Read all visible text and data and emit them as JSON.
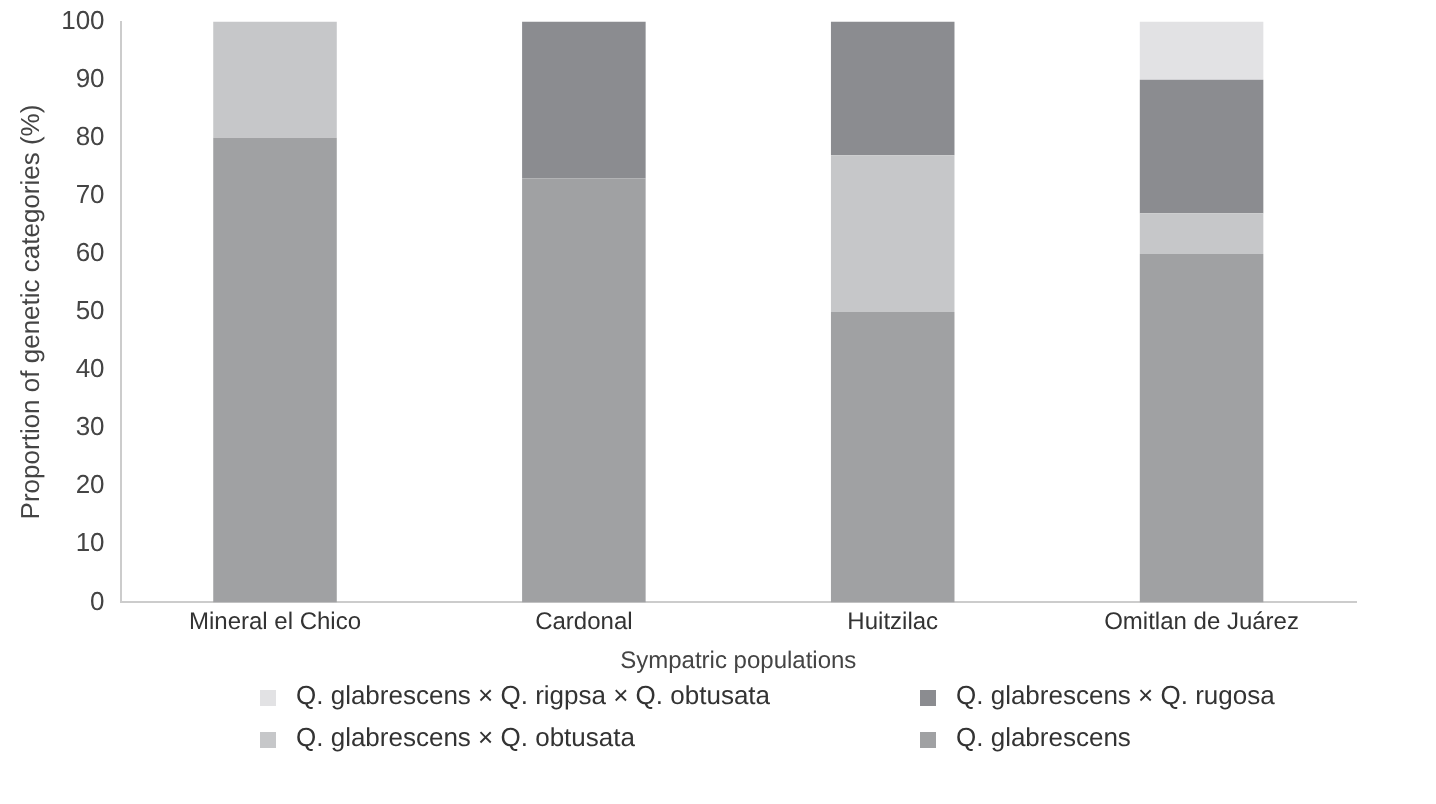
{
  "chart_data": {
    "type": "bar",
    "stacked": true,
    "xlabel": "Sympatric populations",
    "ylabel": "Proportion of genetic categories (%)",
    "categories": [
      "Mineral el Chico",
      "Cardonal",
      "Huitzilac",
      "Omitlan de Juárez"
    ],
    "series": [
      {
        "name": "Q. glabrescens",
        "color": "#a0a1a3",
        "values": [
          80,
          73,
          50,
          60
        ]
      },
      {
        "name": "Q. glabrescens × Q. obtusata",
        "color": "#c6c7c9",
        "values": [
          20,
          0,
          27,
          7
        ]
      },
      {
        "name": "Q. glabrescens × Q. rugosa",
        "color": "#8b8c90",
        "values": [
          0,
          27,
          23,
          23
        ]
      },
      {
        "name": "Q. glabrescens × Q. rigpsa × Q. obtusata",
        "color": "#e2e2e4",
        "values": [
          0,
          0,
          0,
          10
        ]
      }
    ],
    "ylim": [
      0,
      100
    ],
    "yticks": [
      0,
      10,
      20,
      30,
      40,
      50,
      60,
      70,
      80,
      90,
      100
    ],
    "grid": false,
    "legend": "bottom"
  }
}
